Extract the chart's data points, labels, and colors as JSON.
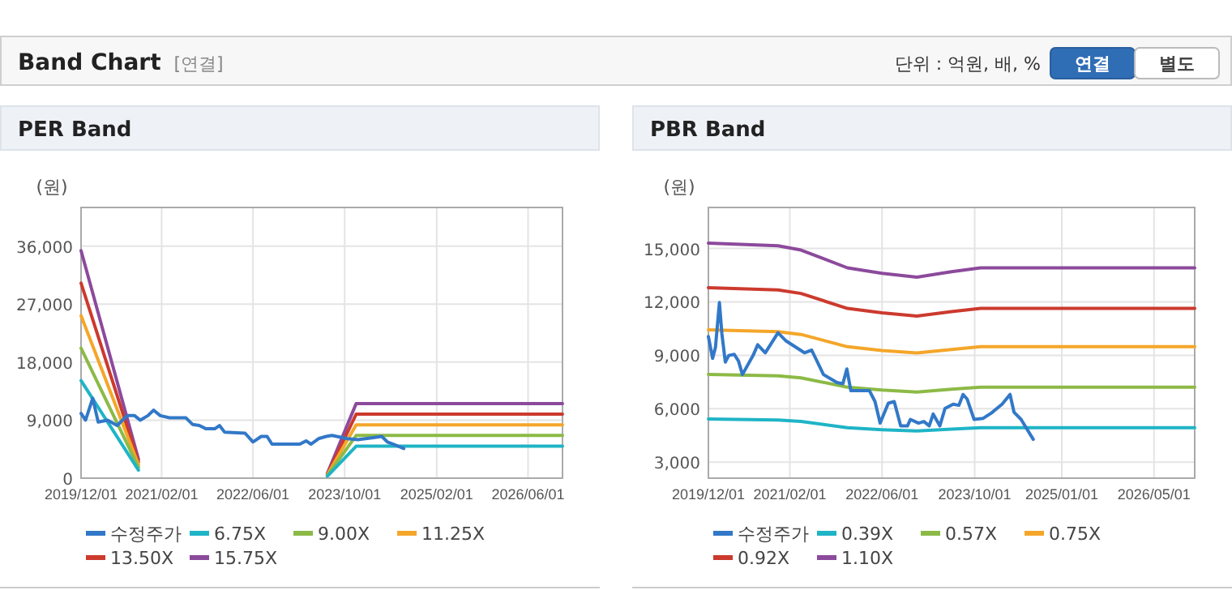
{
  "chart_data": [
    {
      "type": "other",
      "title": "Band Chart",
      "annotations": [
        "[연결]",
        "단위 : 억원, 배, %",
        "연결",
        "별도"
      ]
    },
    {
      "type": "line",
      "title": "PER Band",
      "ylabel": "(원)",
      "legend": "bottom",
      "grid": true,
      "marker": "none",
      "line_style": "solid",
      "xlim": [
        "2019-12-01",
        "2026-12-01"
      ],
      "xticks": [
        {
          "value": "2019-12-01",
          "label": "2019/12/01"
        },
        {
          "value": "2021-02-01",
          "label": "2021/02/01"
        },
        {
          "value": "2022-06-01",
          "label": "2022/06/01"
        },
        {
          "value": "2023-10-01",
          "label": "2023/10/01"
        },
        {
          "value": "2025-02-01",
          "label": "2025/02/01"
        },
        {
          "value": "2026-06-01",
          "label": "2026/06/01"
        }
      ],
      "ylim": [
        0,
        42000
      ],
      "yticks": [
        0,
        {
          "value": 9000,
          "label": "9,000"
        },
        {
          "value": 18000,
          "label": "18,000"
        },
        {
          "value": 27000,
          "label": "27,000"
        },
        {
          "value": 36000,
          "label": "36,000"
        }
      ],
      "series": [
        {
          "name": "수정주가",
          "color": "#3278c8",
          "x": [
            "2019-12-01",
            "2019-12-25",
            "2020-02-01",
            "2020-03-01",
            "2020-04-20",
            "2020-06-10",
            "2020-08-01",
            "2020-09-10",
            "2020-10-10",
            "2020-11-20",
            "2020-12-20",
            "2021-01-25",
            "2021-03-15",
            "2021-06-10",
            "2021-07-15",
            "2021-08-20",
            "2021-09-25",
            "2021-11-10",
            "2021-12-05",
            "2022-01-01",
            "2022-04-20",
            "2022-06-01",
            "2022-07-15",
            "2022-08-15",
            "2022-09-10",
            "2022-12-10",
            "2023-02-05",
            "2023-03-10",
            "2023-04-05",
            "2023-05-15",
            "2023-06-25",
            "2023-07-25",
            "2023-08-20",
            "2023-10-15",
            "2023-12-10",
            "2024-03-01",
            "2024-04-15",
            "2024-05-15",
            "2024-06-15",
            "2024-08-10"
          ],
          "values": [
            10040,
            9000,
            12400,
            8700,
            9000,
            8170,
            9700,
            9700,
            9000,
            9700,
            10550,
            9700,
            9360,
            9360,
            8340,
            8170,
            7660,
            7660,
            8170,
            7150,
            6980,
            5620,
            6470,
            6470,
            5280,
            5280,
            5280,
            5790,
            5280,
            6130,
            6470,
            6640,
            6470,
            6130,
            5960,
            6300,
            6470,
            5620,
            5280,
            4600
          ]
        },
        {
          "name": "6.75X",
          "color": "#1fb4c6",
          "x": [
            "2019-12-01",
            "2020-10-01",
            "2022-01-01",
            "2023-07-01",
            "2023-12-01",
            "2026-12-01"
          ],
          "values": [
            15130,
            1250,
            null,
            300,
            4960,
            4960
          ]
        },
        {
          "name": "9.00X",
          "color": "#8cba46",
          "x": [
            "2019-12-01",
            "2020-10-01",
            "2022-01-01",
            "2023-07-01",
            "2023-12-01",
            "2026-12-01"
          ],
          "values": [
            20170,
            1670,
            null,
            400,
            6620,
            6620
          ]
        },
        {
          "name": "11.25X",
          "color": "#f4a62a",
          "x": [
            "2019-12-01",
            "2020-10-01",
            "2022-01-01",
            "2023-07-01",
            "2023-12-01",
            "2026-12-01"
          ],
          "values": [
            25210,
            2080,
            null,
            510,
            8270,
            8270
          ]
        },
        {
          "name": "13.50X",
          "color": "#cc3a2e",
          "x": [
            "2019-12-01",
            "2020-10-01",
            "2022-01-01",
            "2023-07-01",
            "2023-12-01",
            "2026-12-01"
          ],
          "values": [
            30260,
            2500,
            null,
            610,
            9920,
            9920
          ]
        },
        {
          "name": "15.75X",
          "color": "#8c4a9c",
          "x": [
            "2019-12-01",
            "2020-10-01",
            "2022-01-01",
            "2023-07-01",
            "2023-12-01",
            "2026-12-01"
          ],
          "values": [
            35300,
            2910,
            null,
            710,
            11580,
            11580
          ]
        }
      ]
    },
    {
      "type": "line",
      "title": "PBR Band",
      "ylabel": "(원)",
      "legend": "bottom",
      "grid": true,
      "marker": "none",
      "line_style": "solid",
      "xlim": [
        "2019-12-01",
        "2026-12-01"
      ],
      "xticks": [
        {
          "value": "2019-12-01",
          "label": "2019/12/01"
        },
        {
          "value": "2021-02-01",
          "label": "2021/02/01"
        },
        {
          "value": "2022-06-01",
          "label": "2022/06/01"
        },
        {
          "value": "2023-10-01",
          "label": "2023/10/01"
        },
        {
          "value": "2025-01-01",
          "label": "2025/01/01"
        },
        {
          "value": "2026-05-01",
          "label": "2026/05/01"
        }
      ],
      "ylim": [
        2100,
        17300
      ],
      "yticks": [
        {
          "value": 3000,
          "label": "3,000"
        },
        {
          "value": 6000,
          "label": "6,000"
        },
        {
          "value": 9000,
          "label": "9,000"
        },
        {
          "value": 12000,
          "label": "12,000"
        },
        {
          "value": 15000,
          "label": "15,000"
        }
      ],
      "series": [
        {
          "name": "수정주가",
          "color": "#3278c8",
          "x": [
            "2019-12-01",
            "2019-12-23",
            "2020-01-07",
            "2020-01-28",
            "2020-02-10",
            "2020-02-28",
            "2020-03-17",
            "2020-04-15",
            "2020-05-07",
            "2020-05-28",
            "2020-07-23",
            "2020-08-16",
            "2020-09-25",
            "2020-12-01",
            "2021-01-13",
            "2021-03-07",
            "2021-04-19",
            "2021-05-27",
            "2021-07-28",
            "2021-10-07",
            "2021-11-07",
            "2021-11-28",
            "2021-12-19",
            "2022-03-27",
            "2022-04-25",
            "2022-05-22",
            "2022-07-04",
            "2022-08-04",
            "2022-09-07",
            "2022-10-13",
            "2022-10-28",
            "2022-12-10",
            "2023-01-07",
            "2023-02-04",
            "2023-02-25",
            "2023-04-01",
            "2023-04-28",
            "2023-06-10",
            "2023-07-10",
            "2023-08-01",
            "2023-08-22",
            "2023-09-28",
            "2023-11-15",
            "2023-12-28",
            "2024-02-22",
            "2024-04-04",
            "2024-04-25",
            "2024-06-01",
            "2024-08-04"
          ],
          "values": [
            10050,
            8830,
            9440,
            11960,
            10200,
            8620,
            8990,
            9050,
            8680,
            7920,
            8990,
            9590,
            9140,
            10260,
            9800,
            9440,
            9140,
            9290,
            7920,
            7470,
            7400,
            8230,
            7010,
            7010,
            6400,
            5190,
            6310,
            6400,
            5040,
            5040,
            5400,
            5190,
            5280,
            5040,
            5700,
            5040,
            6010,
            6250,
            6190,
            6800,
            6550,
            5400,
            5460,
            5760,
            6250,
            6800,
            5800,
            5400,
            4280
          ]
        },
        {
          "name": "0.39X",
          "color": "#1fb4c6",
          "x": [
            "2019-12-01",
            "2020-12-01",
            "2021-04-01",
            "2021-12-01",
            "2022-06-01",
            "2022-12-01",
            "2023-06-01",
            "2023-11-01",
            "2026-12-01"
          ],
          "values": [
            5420,
            5370,
            5290,
            4930,
            4820,
            4750,
            4850,
            4930,
            4930
          ]
        },
        {
          "name": "0.57X",
          "color": "#8cba46",
          "x": [
            "2019-12-01",
            "2020-12-01",
            "2021-04-01",
            "2021-12-01",
            "2022-06-01",
            "2022-12-01",
            "2023-06-01",
            "2023-11-01",
            "2026-12-01"
          ],
          "values": [
            7930,
            7850,
            7730,
            7210,
            7050,
            6940,
            7090,
            7210,
            7210
          ]
        },
        {
          "name": "0.75X",
          "color": "#f4a62a",
          "x": [
            "2019-12-01",
            "2020-12-01",
            "2021-04-01",
            "2021-12-01",
            "2022-06-01",
            "2022-12-01",
            "2023-06-01",
            "2023-11-01",
            "2026-12-01"
          ],
          "values": [
            10430,
            10330,
            10170,
            9480,
            9270,
            9130,
            9330,
            9480,
            9480
          ]
        },
        {
          "name": "0.92X",
          "color": "#cc3a2e",
          "x": [
            "2019-12-01",
            "2020-12-01",
            "2021-04-01",
            "2021-12-01",
            "2022-06-01",
            "2022-12-01",
            "2023-06-01",
            "2023-11-01",
            "2026-12-01"
          ],
          "values": [
            12800,
            12670,
            12470,
            11630,
            11380,
            11200,
            11450,
            11630,
            11630
          ]
        },
        {
          "name": "1.10X",
          "color": "#8c4a9c",
          "x": [
            "2019-12-01",
            "2020-12-01",
            "2021-04-01",
            "2021-12-01",
            "2022-06-01",
            "2022-12-01",
            "2023-06-01",
            "2023-11-01",
            "2026-12-01"
          ],
          "values": [
            15300,
            15150,
            14910,
            13910,
            13600,
            13390,
            13690,
            13910,
            13910
          ]
        }
      ]
    }
  ]
}
